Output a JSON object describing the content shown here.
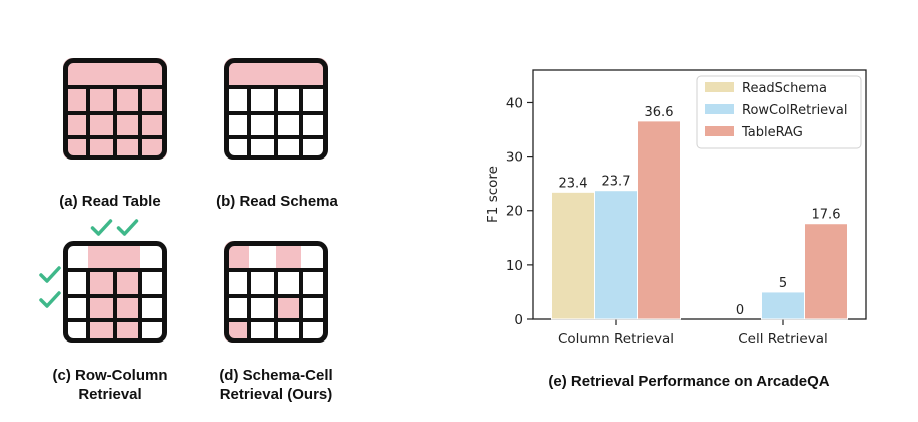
{
  "panels": [
    {
      "caption": [
        "(a) Read Table"
      ]
    },
    {
      "caption": [
        "(b) Read Schema"
      ]
    },
    {
      "caption": [
        "(c) Row-Column",
        "Retrieval"
      ]
    },
    {
      "caption": [
        "(d) Schema-Cell",
        "Retrieval (Ours)"
      ]
    }
  ],
  "colors": {
    "highlight": "#f4c0c4",
    "grid": "#111111",
    "check": "#3fb88a",
    "ReadSchema": "#ecdfb4",
    "RowColRetrieval": "#b8def2",
    "TableRAG": "#eaa898"
  },
  "chart_data": {
    "type": "bar",
    "title": "(e) Retrieval Performance on ArcadeQA",
    "xlabel": "",
    "ylabel": "F1 score",
    "categories": [
      "Column Retrieval",
      "Cell Retrieval"
    ],
    "series": [
      {
        "name": "ReadSchema",
        "values": [
          23.4,
          0
        ]
      },
      {
        "name": "RowColRetrieval",
        "values": [
          23.7,
          5
        ]
      },
      {
        "name": "TableRAG",
        "values": [
          36.6,
          17.6
        ]
      }
    ],
    "data_labels": [
      [
        "23.4",
        "23.7",
        "36.6"
      ],
      [
        "0",
        "5",
        "17.6"
      ]
    ],
    "ylim": [
      0,
      46
    ],
    "yticks": [
      0,
      10,
      20,
      30,
      40
    ],
    "legend": "top-right",
    "grid": false
  }
}
